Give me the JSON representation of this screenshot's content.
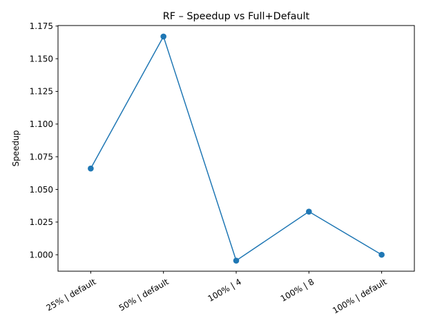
{
  "chart_data": {
    "type": "line",
    "title": "RF – Speedup vs Full+Default",
    "xlabel": "",
    "ylabel": "Speedup",
    "categories": [
      "25% | default",
      "50% | default",
      "100% | 4",
      "100% | 8",
      "100% | default"
    ],
    "series": [
      {
        "values": [
          1.066,
          1.167,
          0.9955,
          1.033,
          1.0
        ],
        "color": "#1f77b4",
        "marker": "circle"
      }
    ],
    "ylim": [
      0.9874,
      1.1754
    ],
    "yticks": [
      1.0,
      1.025,
      1.05,
      1.075,
      1.1,
      1.125,
      1.15,
      1.175
    ],
    "ytick_labels": [
      "1.000",
      "1.025",
      "1.050",
      "1.075",
      "1.100",
      "1.125",
      "1.150",
      "1.175"
    ],
    "xtick_rotation": 30,
    "grid": false,
    "legend": "none"
  }
}
